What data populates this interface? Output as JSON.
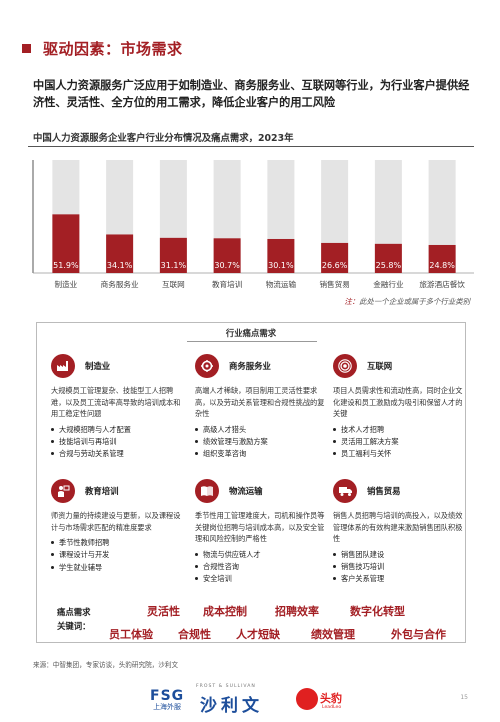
{
  "header": {
    "title": "驱动因素：市场需求"
  },
  "summary": "中国人力资源服务广泛应用于如制造业、商务服务业、互联网等行业，为行业客户提供经济性、灵活性、全方位的用工需求，降低企业客户的用工风险",
  "chart_data": {
    "type": "bar",
    "title": "中国人力资源服务企业客户行业分布情况及痛点需求，2023年",
    "categories": [
      "制造业",
      "商务服务业",
      "互联网",
      "教育培训",
      "物流运输",
      "销售贸易",
      "金融行业",
      "旅游酒店餐饮"
    ],
    "values": [
      51.9,
      34.1,
      31.1,
      30.7,
      30.1,
      26.6,
      25.8,
      24.8
    ],
    "value_labels": [
      "51.9%",
      "34.1%",
      "31.1%",
      "30.7%",
      "30.1%",
      "26.6%",
      "25.8%",
      "24.8%"
    ],
    "ylim": [
      0,
      100
    ],
    "stacked_background": true,
    "colors": {
      "bar": "#a31f24",
      "background": "#e4e4e4",
      "label": "#ffffff"
    }
  },
  "note": {
    "prefix": "注：",
    "text": "此处一个企业或属于多个行业类别"
  },
  "pain_points": {
    "title": "行业痛点需求",
    "industries": [
      {
        "name": "制造业",
        "icon": "factory-icon",
        "desc": "大规模员工管理复杂、技能型工人招聘难，以及员工流动率高导致的培训成本和用工稳定性问题",
        "items": [
          "大规模招聘与人才配置",
          "技能培训与再培训",
          "合规与劳动关系管理"
        ]
      },
      {
        "name": "商务服务业",
        "icon": "handshake-gear-icon",
        "desc": "高端人才稀缺，项目制用工灵活性要求高，以及劳动关系管理和合规性挑战的复杂性",
        "items": [
          "高级人才猎头",
          "绩效管理与激励方案",
          "组织变革咨询"
        ]
      },
      {
        "name": "互联网",
        "icon": "broadcast-icon",
        "desc": "项目人员需求性和流动性高，同时企业文化建设和员工激励成为吸引和保留人才的关键",
        "items": [
          "技术人才招聘",
          "灵活用工解决方案",
          "员工福利与关怀"
        ]
      },
      {
        "name": "教育培训",
        "icon": "teacher-icon",
        "desc": "师资力量的持续建设与更新，以及课程设计与市场需求匹配的精准度要求",
        "items": [
          "季节性教师招聘",
          "课程设计与开发",
          "学生就业辅导"
        ]
      },
      {
        "name": "物流运输",
        "icon": "book-icon",
        "desc": "季节性用工管理难度大，司机和操作员等关键岗位招聘与培训成本高，以及安全管理和风险控制的严格性",
        "items": [
          "物流与供应链人才",
          "合规性咨询",
          "安全培训"
        ]
      },
      {
        "name": "销售贸易",
        "icon": "truck-icon",
        "desc": "销售人员招聘与培训的高投入，以及绩效管理体系的有效构建来激励销售团队积极性",
        "items": [
          "销售团队建设",
          "销售技巧培训",
          "客户关系管理"
        ]
      }
    ],
    "keyword_label": [
      "痛点需求",
      "关键词："
    ],
    "keywords_row1": [
      "灵活性",
      "成本控制",
      "招聘效率",
      "数字化转型"
    ],
    "keywords_row2": [
      "员工体验",
      "合规性",
      "人才短缺",
      "绩效管理",
      "外包与合作"
    ]
  },
  "source": "来源：中智集团，专家访谈，头豹研究院，沙利文",
  "footer": {
    "fsg": "FSG",
    "fsg_sub": "上海外服",
    "frost": "FROST & SULLIVAN",
    "shali": "沙利文",
    "toutiao": "头豹",
    "toutiao_sub": "LeadLeo",
    "page": "15"
  }
}
